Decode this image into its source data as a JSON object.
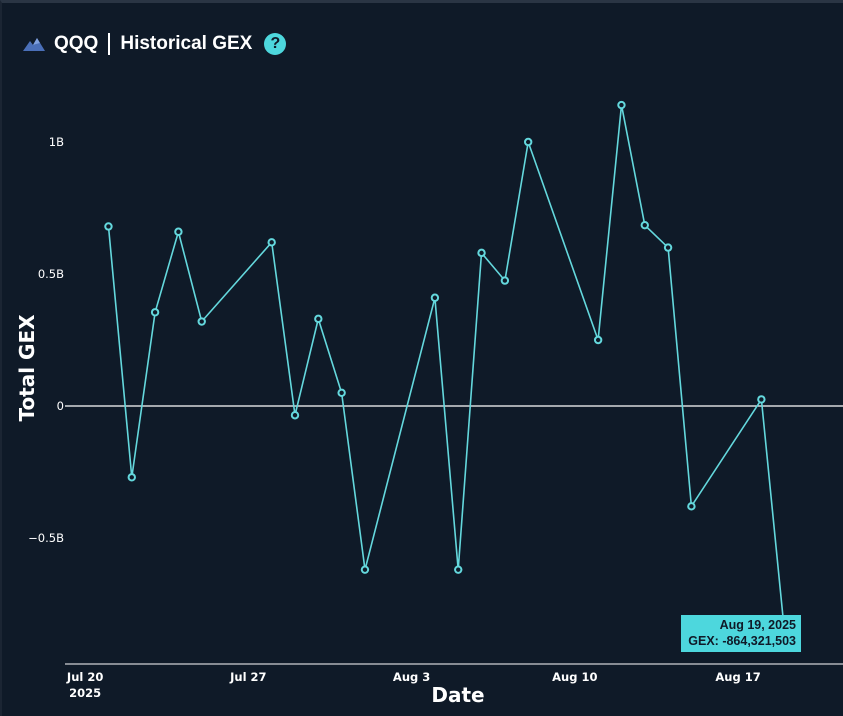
{
  "header": {
    "symbol": "QQQ",
    "title": "Historical GEX",
    "logo_icon": "mountain-logo-icon",
    "help_icon": "question-mark-icon",
    "help_label": "?"
  },
  "colors": {
    "background": "#0f1a28",
    "line": "#64d8dd",
    "marker": "#64d8dd",
    "zero_line": "#ffffff",
    "tooltip_bg": "#4dd7dd"
  },
  "tooltip": {
    "date": "Aug 19, 2025",
    "value_text": "GEX: -864,321,503"
  },
  "chart_data": {
    "type": "line",
    "xlabel": "Date",
    "ylabel": "Total GEX",
    "x_ticks": [
      {
        "date": "2025-07-20",
        "label": "Jul 20",
        "sublabel": "2025"
      },
      {
        "date": "2025-07-27",
        "label": "Jul 27",
        "sublabel": ""
      },
      {
        "date": "2025-08-03",
        "label": "Aug 3",
        "sublabel": ""
      },
      {
        "date": "2025-08-10",
        "label": "Aug 10",
        "sublabel": ""
      },
      {
        "date": "2025-08-17",
        "label": "Aug 17",
        "sublabel": ""
      }
    ],
    "y_ticks": [
      {
        "value": 1000000000,
        "label": "1B"
      },
      {
        "value": 500000000,
        "label": "0.5B"
      },
      {
        "value": 0,
        "label": "0"
      },
      {
        "value": -500000000,
        "label": "−0.5B"
      }
    ],
    "ylim": [
      -980000000,
      1260000000
    ],
    "xlim": [
      "2025-07-18",
      "2025-08-20"
    ],
    "zero_line": true,
    "grid": false,
    "series": [
      {
        "x": [
          "2025-07-21",
          "2025-07-22",
          "2025-07-23",
          "2025-07-24",
          "2025-07-25",
          "2025-07-28",
          "2025-07-29",
          "2025-07-30",
          "2025-07-31",
          "2025-08-01",
          "2025-08-04",
          "2025-08-05",
          "2025-08-06",
          "2025-08-07",
          "2025-08-08",
          "2025-08-11",
          "2025-08-12",
          "2025-08-13",
          "2025-08-14",
          "2025-08-15",
          "2025-08-18",
          "2025-08-19"
        ],
        "y": [
          680000000,
          -270000000,
          355000000,
          660000000,
          320000000,
          620000000,
          -35000000,
          330000000,
          50000000,
          -620000000,
          410000000,
          -620000000,
          580000000,
          475000000,
          1000000000,
          250000000,
          1140000000,
          685000000,
          600000000,
          -380000000,
          25000000,
          -864321503
        ]
      }
    ]
  }
}
